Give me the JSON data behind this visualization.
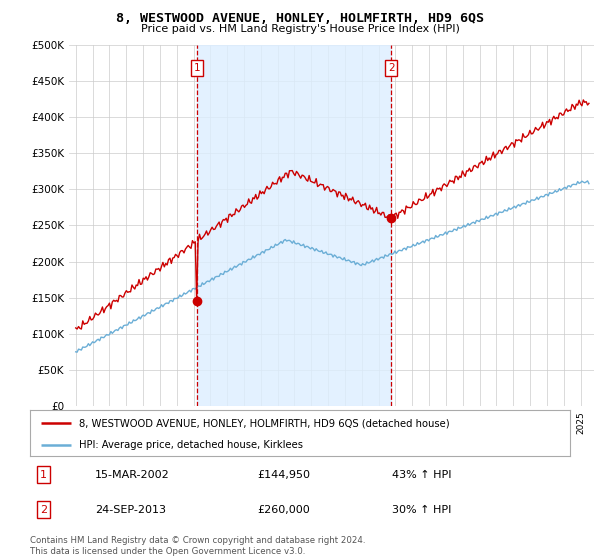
{
  "title": "8, WESTWOOD AVENUE, HONLEY, HOLMFIRTH, HD9 6QS",
  "subtitle": "Price paid vs. HM Land Registry's House Price Index (HPI)",
  "ylim": [
    0,
    500000
  ],
  "yticks": [
    0,
    50000,
    100000,
    150000,
    200000,
    250000,
    300000,
    350000,
    400000,
    450000,
    500000
  ],
  "ytick_labels": [
    "£0",
    "£50K",
    "£100K",
    "£150K",
    "£200K",
    "£250K",
    "£300K",
    "£350K",
    "£400K",
    "£450K",
    "£500K"
  ],
  "hpi_color": "#6baed6",
  "sold_color": "#cc0000",
  "vline_color": "#cc0000",
  "shade_color": "#ddeeff",
  "background_color": "#ffffff",
  "grid_color": "#cccccc",
  "transaction1": {
    "date": "15-MAR-2002",
    "price": 144950,
    "hpi_pct": "43% ↑ HPI",
    "label": "1"
  },
  "transaction2": {
    "date": "24-SEP-2013",
    "price": 260000,
    "hpi_pct": "30% ↑ HPI",
    "label": "2"
  },
  "legend_line1": "8, WESTWOOD AVENUE, HONLEY, HOLMFIRTH, HD9 6QS (detached house)",
  "legend_line2": "HPI: Average price, detached house, Kirklees",
  "footer": "Contains HM Land Registry data © Crown copyright and database right 2024.\nThis data is licensed under the Open Government Licence v3.0.",
  "t1_x": 2002.2,
  "t2_x": 2013.75,
  "t1_price": 144950,
  "t2_price": 260000,
  "xlim_left": 1994.6,
  "xlim_right": 2025.8
}
